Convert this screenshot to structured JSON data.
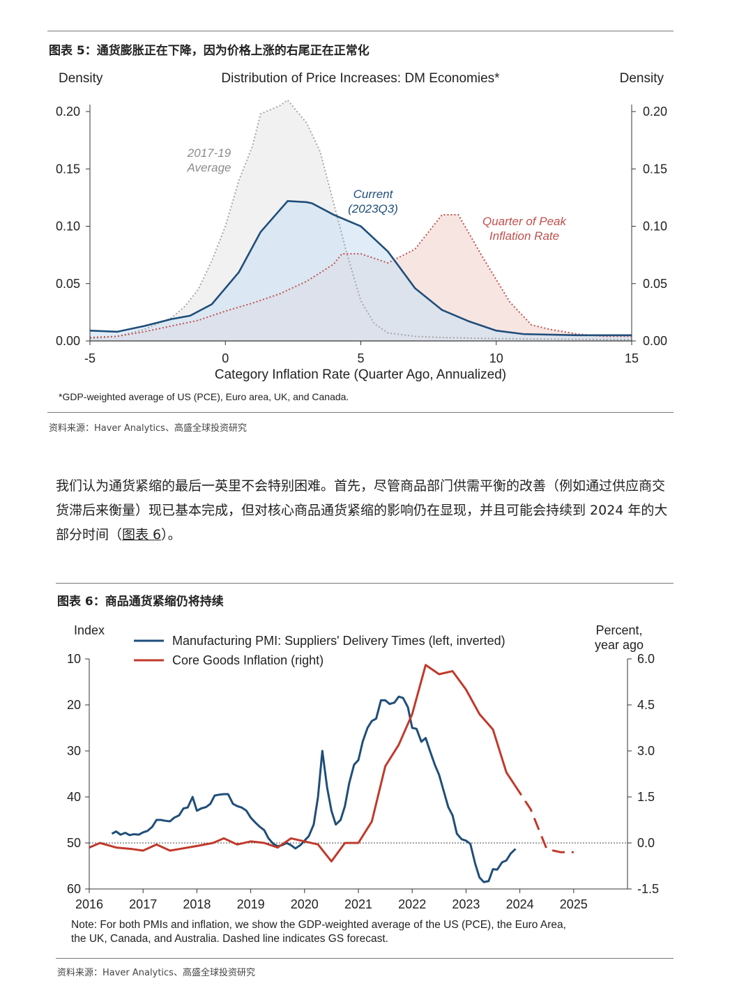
{
  "figure5": {
    "caption": "图表 5：通货膨胀正在下降，因为价格上涨的右尾正在正常化",
    "source": "资料来源：Haver Analytics、高盛全球投资研究"
  },
  "paragraph": {
    "text_before": "我们认为通货紧缩的最后一英里不会特别困难。首先，尽管商品部门供需平衡的改善（例如通过供应商交货滞后来衡量）现已基本完成，但对核心商品通货紧缩的影响仍在显现，并且可能会持续到 2024 年的大部分时间（",
    "link": "图表 6",
    "text_after": "）。"
  },
  "figure6": {
    "caption": "图表 6：商品通货紧缩仍将持续",
    "source": "资料来源：Haver Analytics、高盛全球投资研究"
  },
  "chart_data": [
    {
      "type": "area",
      "title": "Distribution of Price Increases: DM Economies*",
      "ylabel_left": "Density",
      "ylabel_right": "Density",
      "xlabel": "Category Inflation Rate (Quarter Ago, Annualized)",
      "footnote": "*GDP-weighted average of US (PCE), Euro area, UK, and Canada.",
      "xlim": [
        -5,
        15
      ],
      "ylim": [
        0,
        0.2
      ],
      "x_ticks": [
        "-5",
        "0",
        "5",
        "10",
        "15"
      ],
      "y_ticks": [
        "0.00",
        "0.05",
        "0.10",
        "0.15",
        "0.20"
      ],
      "series": [
        {
          "name": "2017-19 Average",
          "label_lines": [
            "2017-19",
            "Average"
          ],
          "color": "#a6a6a6",
          "fill": "#e9e9e9",
          "points": [
            [
              -5,
              0.002
            ],
            [
              -4,
              0.004
            ],
            [
              -3,
              0.01
            ],
            [
              -2,
              0.02
            ],
            [
              -1.5,
              0.03
            ],
            [
              -1,
              0.045
            ],
            [
              -0.5,
              0.07
            ],
            [
              0,
              0.1
            ],
            [
              0.5,
              0.14
            ],
            [
              1,
              0.17
            ],
            [
              1.3,
              0.198
            ],
            [
              2,
              0.205
            ],
            [
              2.3,
              0.21
            ],
            [
              3,
              0.19
            ],
            [
              3.5,
              0.165
            ],
            [
              4,
              0.12
            ],
            [
              4.5,
              0.075
            ],
            [
              5,
              0.035
            ],
            [
              5.5,
              0.015
            ],
            [
              6,
              0.007
            ],
            [
              7,
              0.004
            ],
            [
              8,
              0.003
            ],
            [
              10,
              0.002
            ],
            [
              15,
              0.001
            ]
          ]
        },
        {
          "name": "Current (2023Q3)",
          "label_lines": [
            "Current",
            "(2023Q3)"
          ],
          "color": "#1f4e79",
          "fill": "#cfe2f3",
          "points": [
            [
              -5,
              0.009
            ],
            [
              -4,
              0.008
            ],
            [
              -3,
              0.013
            ],
            [
              -2,
              0.019
            ],
            [
              -1.3,
              0.022
            ],
            [
              -0.5,
              0.032
            ],
            [
              0.5,
              0.06
            ],
            [
              1.3,
              0.095
            ],
            [
              2.3,
              0.122
            ],
            [
              3,
              0.121
            ],
            [
              3.2,
              0.12
            ],
            [
              4,
              0.11
            ],
            [
              5,
              0.1
            ],
            [
              6,
              0.078
            ],
            [
              7,
              0.046
            ],
            [
              8,
              0.027
            ],
            [
              9,
              0.017
            ],
            [
              10,
              0.009
            ],
            [
              11,
              0.006
            ],
            [
              13,
              0.005
            ],
            [
              15,
              0.005
            ]
          ]
        },
        {
          "name": "Quarter of Peak Inflation Rate",
          "label_lines": [
            "Quarter of Peak",
            "Inflation Rate"
          ],
          "color": "#c0504d",
          "fill": "#f2d7d3",
          "points": [
            [
              -5,
              0.003
            ],
            [
              -4,
              0.004
            ],
            [
              -3,
              0.008
            ],
            [
              -2,
              0.013
            ],
            [
              -1,
              0.018
            ],
            [
              0,
              0.026
            ],
            [
              1,
              0.033
            ],
            [
              2,
              0.041
            ],
            [
              3,
              0.052
            ],
            [
              4,
              0.067
            ],
            [
              4.3,
              0.076
            ],
            [
              5,
              0.076
            ],
            [
              6,
              0.068
            ],
            [
              7,
              0.08
            ],
            [
              7.5,
              0.095
            ],
            [
              8,
              0.11
            ],
            [
              8.6,
              0.11
            ],
            [
              9.5,
              0.073
            ],
            [
              10.5,
              0.034
            ],
            [
              11.3,
              0.014
            ],
            [
              12,
              0.01
            ],
            [
              13,
              0.006
            ],
            [
              14,
              0.004
            ],
            [
              15,
              0.004
            ]
          ]
        }
      ]
    },
    {
      "type": "line",
      "title": "",
      "legend": "top-left",
      "ylabel_left": "Index",
      "ylabel_right_lines": [
        "Percent,",
        "year ago"
      ],
      "note_lines": [
        "Note: For both PMIs and inflation, we show the GDP-weighted average of the US (PCE), the Euro Area,",
        "the UK, Canada, and Australia. Dashed line indicates GS forecast."
      ],
      "xlim": [
        2016,
        2026
      ],
      "x_ticks": [
        "2016",
        "2017",
        "2018",
        "2019",
        "2020",
        "2021",
        "2022",
        "2023",
        "2024",
        "2025"
      ],
      "ylim_left_inverted": [
        10,
        60
      ],
      "y_ticks_left": [
        "10",
        "20",
        "30",
        "40",
        "50",
        "60"
      ],
      "ylim_right": [
        -1.5,
        6.0
      ],
      "y_ticks_right": [
        "6.0",
        "4.5",
        "3.0",
        "1.5",
        "0.0",
        "-1.5"
      ],
      "series": [
        {
          "name": "Manufacturing PMI: Suppliers' Delivery Times (left, inverted)",
          "color": "#1f4e79",
          "axis": "left",
          "points": [
            [
              2016.42,
              48
            ],
            [
              2016.5,
              47.5
            ],
            [
              2016.58,
              48.2
            ],
            [
              2016.67,
              47.8
            ],
            [
              2016.75,
              48.3
            ],
            [
              2016.83,
              48.1
            ],
            [
              2016.92,
              48.2
            ],
            [
              2017,
              47.7
            ],
            [
              2017.08,
              47.4
            ],
            [
              2017.17,
              46.5
            ],
            [
              2017.25,
              45
            ],
            [
              2017.33,
              45
            ],
            [
              2017.42,
              45.2
            ],
            [
              2017.5,
              45.3
            ],
            [
              2017.58,
              44.5
            ],
            [
              2017.67,
              44
            ],
            [
              2017.75,
              42.5
            ],
            [
              2017.83,
              42.3
            ],
            [
              2017.92,
              40
            ],
            [
              2018,
              43
            ],
            [
              2018.08,
              42.5
            ],
            [
              2018.17,
              42.2
            ],
            [
              2018.25,
              41.5
            ],
            [
              2018.33,
              39.7
            ],
            [
              2018.42,
              39.5
            ],
            [
              2018.5,
              39.4
            ],
            [
              2018.58,
              39.4
            ],
            [
              2018.67,
              41.5
            ],
            [
              2018.75,
              42
            ],
            [
              2018.83,
              42.3
            ],
            [
              2018.92,
              43
            ],
            [
              2019,
              44.5
            ],
            [
              2019.08,
              45.5
            ],
            [
              2019.17,
              46.5
            ],
            [
              2019.25,
              47.2
            ],
            [
              2019.33,
              49
            ],
            [
              2019.42,
              50.2
            ],
            [
              2019.5,
              50.7
            ],
            [
              2019.58,
              50.5
            ],
            [
              2019.67,
              50
            ],
            [
              2019.75,
              50.5
            ],
            [
              2019.83,
              51.2
            ],
            [
              2019.92,
              50.5
            ],
            [
              2020,
              49.5
            ],
            [
              2020.08,
              48.5
            ],
            [
              2020.17,
              46
            ],
            [
              2020.25,
              40
            ],
            [
              2020.33,
              30
            ],
            [
              2020.42,
              38
            ],
            [
              2020.5,
              43
            ],
            [
              2020.58,
              46
            ],
            [
              2020.67,
              45
            ],
            [
              2020.75,
              42
            ],
            [
              2020.83,
              37
            ],
            [
              2020.92,
              33
            ],
            [
              2021,
              32
            ],
            [
              2021.08,
              28
            ],
            [
              2021.17,
              25
            ],
            [
              2021.25,
              23.5
            ],
            [
              2021.33,
              23
            ],
            [
              2021.42,
              19
            ],
            [
              2021.5,
              19
            ],
            [
              2021.58,
              19.8
            ],
            [
              2021.67,
              19.5
            ],
            [
              2021.75,
              18.2
            ],
            [
              2021.83,
              18.5
            ],
            [
              2021.92,
              20.5
            ],
            [
              2022,
              25
            ],
            [
              2022.08,
              25.2
            ],
            [
              2022.17,
              28
            ],
            [
              2022.25,
              27.2
            ],
            [
              2022.33,
              30
            ],
            [
              2022.42,
              33
            ],
            [
              2022.5,
              35.2
            ],
            [
              2022.58,
              38.5
            ],
            [
              2022.67,
              42.2
            ],
            [
              2022.75,
              44
            ],
            [
              2022.83,
              48
            ],
            [
              2022.92,
              49.2
            ],
            [
              2023,
              49.5
            ],
            [
              2023.08,
              50.2
            ],
            [
              2023.17,
              54.5
            ],
            [
              2023.25,
              57.5
            ],
            [
              2023.33,
              58.5
            ],
            [
              2023.42,
              58.3
            ],
            [
              2023.5,
              55.7
            ],
            [
              2023.58,
              55.8
            ],
            [
              2023.67,
              54.2
            ],
            [
              2023.75,
              53.8
            ],
            [
              2023.83,
              52.3
            ],
            [
              2023.92,
              51.3
            ]
          ]
        },
        {
          "name": "Core Goods Inflation (right)",
          "color": "#c0392b",
          "axis": "right",
          "points": [
            [
              2016,
              -0.15
            ],
            [
              2016.2,
              0
            ],
            [
              2016.5,
              -0.15
            ],
            [
              2016.8,
              -0.2
            ],
            [
              2017,
              -0.25
            ],
            [
              2017.25,
              -0.05
            ],
            [
              2017.5,
              -0.25
            ],
            [
              2018,
              -0.1
            ],
            [
              2018.3,
              0
            ],
            [
              2018.5,
              0.15
            ],
            [
              2018.75,
              -0.05
            ],
            [
              2019,
              0.05
            ],
            [
              2019.25,
              0
            ],
            [
              2019.5,
              -0.15
            ],
            [
              2019.75,
              0.15
            ],
            [
              2020,
              0.05
            ],
            [
              2020.25,
              -0.05
            ],
            [
              2020.5,
              -0.6
            ],
            [
              2020.75,
              0
            ],
            [
              2021,
              0
            ],
            [
              2021.25,
              0.7
            ],
            [
              2021.5,
              2.5
            ],
            [
              2021.75,
              3.2
            ],
            [
              2022,
              4.2
            ],
            [
              2022.25,
              5.8
            ],
            [
              2022.5,
              5.5
            ],
            [
              2022.75,
              5.6
            ],
            [
              2023,
              5
            ],
            [
              2023.25,
              4.2
            ],
            [
              2023.5,
              3.7
            ],
            [
              2023.75,
              2.3
            ],
            [
              2023.9,
              1.9
            ]
          ]
        },
        {
          "name": "Core Goods Inflation forecast",
          "color": "#c0392b",
          "axis": "right",
          "dashed": true,
          "points": [
            [
              2023.9,
              1.9
            ],
            [
              2024.2,
              1.1
            ],
            [
              2024.5,
              -0.2
            ],
            [
              2024.75,
              -0.3
            ],
            [
              2025,
              -0.3
            ]
          ]
        }
      ]
    }
  ]
}
